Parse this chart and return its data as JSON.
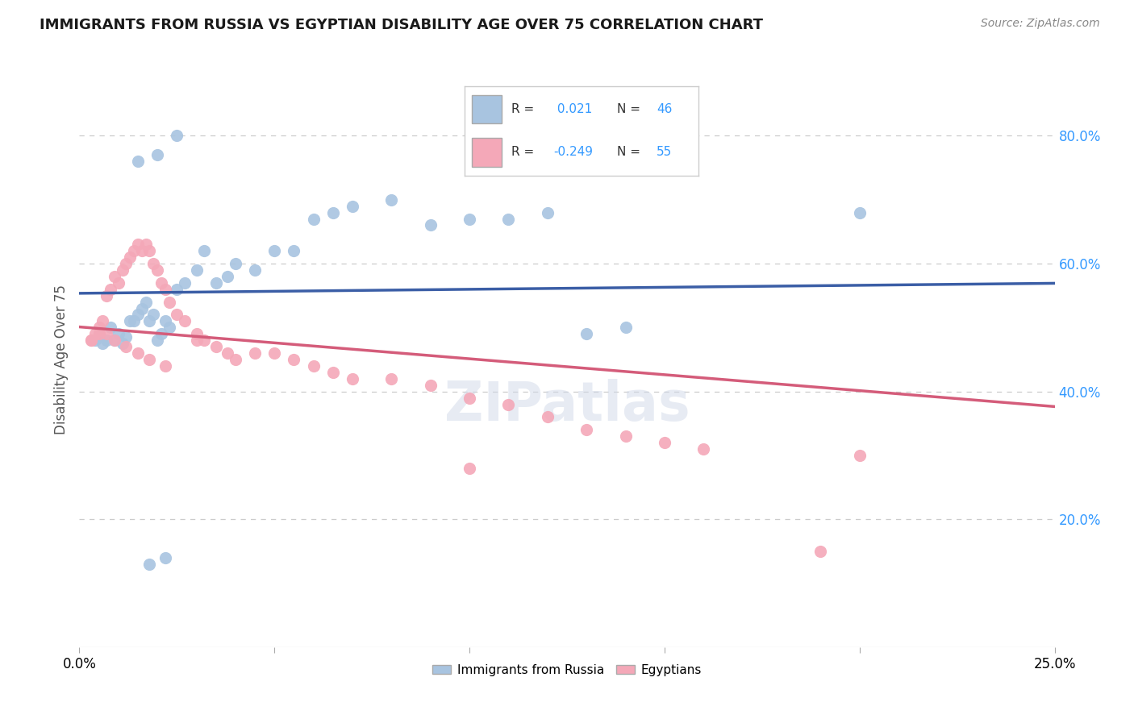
{
  "title": "IMMIGRANTS FROM RUSSIA VS EGYPTIAN DISABILITY AGE OVER 75 CORRELATION CHART",
  "source": "Source: ZipAtlas.com",
  "ylabel": "Disability Age Over 75",
  "xlim": [
    0.0,
    0.25
  ],
  "ylim": [
    0.0,
    0.9
  ],
  "x_ticks": [
    0.0,
    0.05,
    0.1,
    0.15,
    0.2,
    0.25
  ],
  "x_tick_labels": [
    "0.0%",
    "",
    "",
    "",
    "",
    "25.0%"
  ],
  "y_ticks_right": [
    0.2,
    0.4,
    0.6,
    0.8
  ],
  "y_tick_labels_right": [
    "20.0%",
    "40.0%",
    "60.0%",
    "80.0%"
  ],
  "legend_labels": [
    "Immigrants from Russia",
    "Egyptians"
  ],
  "russia_R": 0.021,
  "russia_N": 46,
  "egypt_R": -0.249,
  "egypt_N": 55,
  "russia_color": "#a8c4e0",
  "egypt_color": "#f4a8b8",
  "russia_line_color": "#3b5ea6",
  "egypt_line_color": "#d45c7a",
  "background_color": "#ffffff",
  "grid_color": "#cccccc",
  "title_color": "#1a1a1a",
  "russia_scatter_x": [
    0.004,
    0.005,
    0.006,
    0.007,
    0.008,
    0.009,
    0.01,
    0.011,
    0.012,
    0.013,
    0.014,
    0.015,
    0.016,
    0.017,
    0.018,
    0.019,
    0.02,
    0.021,
    0.022,
    0.023,
    0.025,
    0.027,
    0.03,
    0.032,
    0.035,
    0.038,
    0.04,
    0.045,
    0.05,
    0.055,
    0.06,
    0.065,
    0.07,
    0.08,
    0.09,
    0.1,
    0.11,
    0.12,
    0.13,
    0.14,
    0.015,
    0.02,
    0.025,
    0.2,
    0.018,
    0.022
  ],
  "russia_scatter_y": [
    0.48,
    0.49,
    0.475,
    0.48,
    0.5,
    0.48,
    0.49,
    0.475,
    0.485,
    0.51,
    0.51,
    0.52,
    0.53,
    0.54,
    0.51,
    0.52,
    0.48,
    0.49,
    0.51,
    0.5,
    0.56,
    0.57,
    0.59,
    0.62,
    0.57,
    0.58,
    0.6,
    0.59,
    0.62,
    0.62,
    0.67,
    0.68,
    0.69,
    0.7,
    0.66,
    0.67,
    0.67,
    0.68,
    0.49,
    0.5,
    0.76,
    0.77,
    0.8,
    0.68,
    0.13,
    0.14
  ],
  "egypt_scatter_x": [
    0.003,
    0.004,
    0.005,
    0.006,
    0.007,
    0.008,
    0.009,
    0.01,
    0.011,
    0.012,
    0.013,
    0.014,
    0.015,
    0.016,
    0.017,
    0.018,
    0.019,
    0.02,
    0.021,
    0.022,
    0.023,
    0.025,
    0.027,
    0.03,
    0.032,
    0.035,
    0.038,
    0.04,
    0.045,
    0.05,
    0.055,
    0.06,
    0.065,
    0.07,
    0.08,
    0.09,
    0.1,
    0.11,
    0.12,
    0.13,
    0.14,
    0.15,
    0.16,
    0.19,
    0.2,
    0.003,
    0.005,
    0.007,
    0.009,
    0.012,
    0.015,
    0.018,
    0.022,
    0.03,
    0.1
  ],
  "egypt_scatter_y": [
    0.48,
    0.49,
    0.5,
    0.51,
    0.55,
    0.56,
    0.58,
    0.57,
    0.59,
    0.6,
    0.61,
    0.62,
    0.63,
    0.62,
    0.63,
    0.62,
    0.6,
    0.59,
    0.57,
    0.56,
    0.54,
    0.52,
    0.51,
    0.49,
    0.48,
    0.47,
    0.46,
    0.45,
    0.46,
    0.46,
    0.45,
    0.44,
    0.43,
    0.42,
    0.42,
    0.41,
    0.39,
    0.38,
    0.36,
    0.34,
    0.33,
    0.32,
    0.31,
    0.15,
    0.3,
    0.48,
    0.49,
    0.49,
    0.48,
    0.47,
    0.46,
    0.45,
    0.44,
    0.48,
    0.28
  ]
}
